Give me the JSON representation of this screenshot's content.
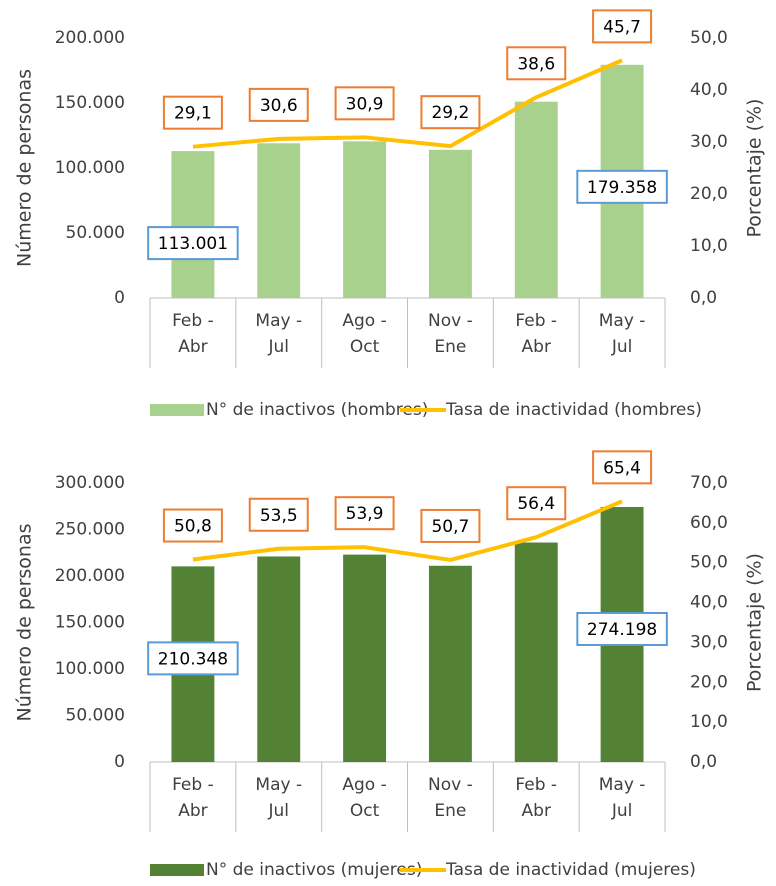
{
  "chart_data": [
    {
      "type": "bar_line",
      "y_label": "Número de personas",
      "y2_label": "Porcentaje (%)",
      "categories": [
        "Feb - Abr",
        "May - Jul",
        "Ago - Oct",
        "Nov - Ene",
        "Feb - Abr",
        "May - Jul"
      ],
      "series": [
        {
          "name": "N° de inactivos (hombres)",
          "type": "bar",
          "color": "#a9d18e",
          "values": [
            113001,
            119000,
            120500,
            114000,
            151000,
            179358
          ],
          "value_labels": [
            "113.001",
            null,
            null,
            null,
            null,
            "179.358"
          ]
        },
        {
          "name": "Tasa de inactividad (hombres)",
          "type": "line",
          "axis": "y2",
          "color": "#ffc000",
          "values": [
            29.1,
            30.6,
            30.9,
            29.2,
            38.6,
            45.7
          ],
          "value_labels": [
            "29,1",
            "30,6",
            "30,9",
            "29,2",
            "38,6",
            "45,7"
          ]
        }
      ],
      "ylim": [
        0,
        200000
      ],
      "yticks": [
        0,
        {
          "value": 50000,
          "label": "50.000"
        },
        {
          "value": 100000,
          "label": "100.000"
        },
        {
          "value": 150000,
          "label": "150.000"
        },
        {
          "value": 200000,
          "label": "200.000"
        }
      ],
      "y2lim": [
        0,
        50
      ],
      "y2ticks": [
        {
          "value": 0,
          "label": "0,0"
        },
        {
          "value": 10,
          "label": "10,0"
        },
        {
          "value": 20,
          "label": "20,0"
        },
        {
          "value": 30,
          "label": "30,0"
        },
        {
          "value": 40,
          "label": "40,0"
        },
        {
          "value": 50,
          "label": "50,0"
        }
      ],
      "grid": false,
      "legend": "bottom"
    },
    {
      "type": "bar_line",
      "y_label": "Número de personas",
      "y2_label": "Porcentaje (%)",
      "categories": [
        "Feb - Abr",
        "May - Jul",
        "Ago - Oct",
        "Nov - Ene",
        "Feb - Abr",
        "May - Jul"
      ],
      "series": [
        {
          "name": "N° de inactivos (mujeres)",
          "type": "bar",
          "color": "#548235",
          "values": [
            210348,
            221000,
            223000,
            211000,
            236000,
            274198
          ],
          "value_labels": [
            "210.348",
            null,
            null,
            null,
            null,
            "274.198"
          ]
        },
        {
          "name": "Tasa de inactividad (mujeres)",
          "type": "line",
          "axis": "y2",
          "color": "#ffc000",
          "values": [
            50.8,
            53.5,
            53.9,
            50.7,
            56.4,
            65.4
          ],
          "value_labels": [
            "50,8",
            "53,5",
            "53,9",
            "50,7",
            "56,4",
            "65,4"
          ]
        }
      ],
      "ylim": [
        0,
        300000
      ],
      "yticks": [
        0,
        {
          "value": 50000,
          "label": "50.000"
        },
        {
          "value": 100000,
          "label": "100.000"
        },
        {
          "value": 150000,
          "label": "150.000"
        },
        {
          "value": 200000,
          "label": "200.000"
        },
        {
          "value": 250000,
          "label": "250.000"
        },
        {
          "value": 300000,
          "label": "300.000"
        }
      ],
      "y2lim": [
        0,
        70
      ],
      "y2ticks": [
        {
          "value": 0,
          "label": "0,0"
        },
        {
          "value": 10,
          "label": "10,0"
        },
        {
          "value": 20,
          "label": "20,0"
        },
        {
          "value": 30,
          "label": "30,0"
        },
        {
          "value": 40,
          "label": "40,0"
        },
        {
          "value": 50,
          "label": "50,0"
        },
        {
          "value": 60,
          "label": "60,0"
        },
        {
          "value": 70,
          "label": "70,0"
        }
      ],
      "grid": false,
      "legend": "bottom"
    }
  ]
}
